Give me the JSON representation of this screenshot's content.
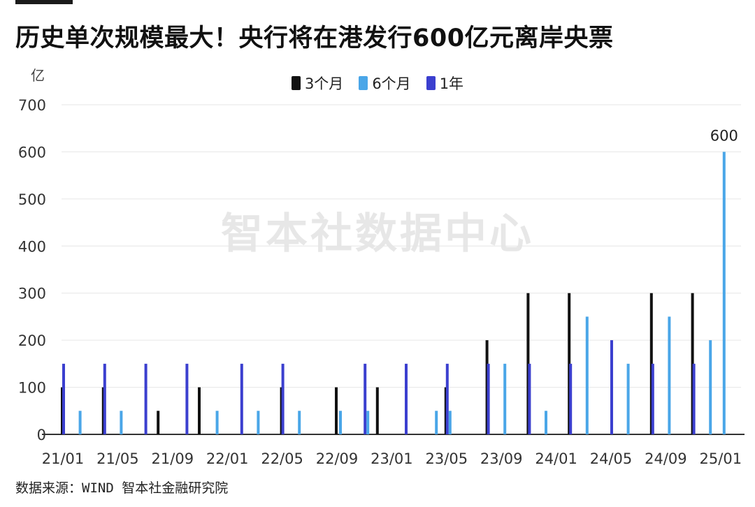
{
  "title": "历史单次规模最大！央行将在港发行600亿元离岸央票",
  "unit": "亿",
  "watermark": "智本社数据中心",
  "footer": "数据来源：WIND 智本社金融研究院",
  "colors": {
    "m3": "#111111",
    "m6": "#4aa6e8",
    "y1": "#3b3fcf",
    "grid": "#e6e6e6",
    "axis": "#333333"
  },
  "chart_data": {
    "type": "bar",
    "title": "历史单次规模最大！央行将在港发行600亿元离岸央票",
    "ylabel": "亿",
    "xlabel": "",
    "ylim": [
      0,
      700
    ],
    "yticks": [
      0,
      100,
      200,
      300,
      400,
      500,
      600,
      700
    ],
    "xticks": [
      "21/01",
      "21/05",
      "21/09",
      "22/01",
      "22/05",
      "22/09",
      "23/01",
      "23/05",
      "23/09",
      "24/01",
      "24/05",
      "24/09",
      "25/01"
    ],
    "legend_position": "top-center",
    "grid": true,
    "series": [
      {
        "name": "3个月",
        "color_key": "m3",
        "points": [
          {
            "x": "21/01",
            "value": 100
          },
          {
            "x": "21/04",
            "value": 100
          },
          {
            "x": "21/08",
            "value": 50
          },
          {
            "x": "21/11",
            "value": 100
          },
          {
            "x": "22/05",
            "value": 100
          },
          {
            "x": "22/09",
            "value": 100
          },
          {
            "x": "22/12",
            "value": 100
          },
          {
            "x": "23/05",
            "value": 100
          },
          {
            "x": "23/08",
            "value": 200
          },
          {
            "x": "23/11",
            "value": 300
          },
          {
            "x": "24/02",
            "value": 300
          },
          {
            "x": "24/08",
            "value": 300
          },
          {
            "x": "24/11",
            "value": 300
          }
        ]
      },
      {
        "name": "6个月",
        "color_key": "m6",
        "points": [
          {
            "x": "21/02",
            "value": 50
          },
          {
            "x": "21/05",
            "value": 50
          },
          {
            "x": "21/12",
            "value": 50
          },
          {
            "x": "22/03",
            "value": 50
          },
          {
            "x": "22/06",
            "value": 50
          },
          {
            "x": "22/09",
            "value": 50
          },
          {
            "x": "22/11",
            "value": 50
          },
          {
            "x": "23/04",
            "value": 50
          },
          {
            "x": "23/05",
            "value": 50
          },
          {
            "x": "23/09",
            "value": 150
          },
          {
            "x": "23/12",
            "value": 50
          },
          {
            "x": "24/03",
            "value": 250
          },
          {
            "x": "24/06",
            "value": 150
          },
          {
            "x": "24/09",
            "value": 250
          },
          {
            "x": "24/12",
            "value": 200
          },
          {
            "x": "25/01",
            "value": 600,
            "label": "600"
          }
        ]
      },
      {
        "name": "1年",
        "color_key": "y1",
        "points": [
          {
            "x": "21/01",
            "value": 150
          },
          {
            "x": "21/04",
            "value": 150
          },
          {
            "x": "21/07",
            "value": 150
          },
          {
            "x": "21/10",
            "value": 150
          },
          {
            "x": "22/02",
            "value": 150
          },
          {
            "x": "22/05",
            "value": 150
          },
          {
            "x": "22/11",
            "value": 150
          },
          {
            "x": "23/02",
            "value": 150
          },
          {
            "x": "23/05",
            "value": 150
          },
          {
            "x": "23/08",
            "value": 150
          },
          {
            "x": "23/11",
            "value": 150
          },
          {
            "x": "24/02",
            "value": 150
          },
          {
            "x": "24/05",
            "value": 200
          },
          {
            "x": "24/08",
            "value": 150
          },
          {
            "x": "24/11",
            "value": 150
          }
        ]
      }
    ]
  }
}
